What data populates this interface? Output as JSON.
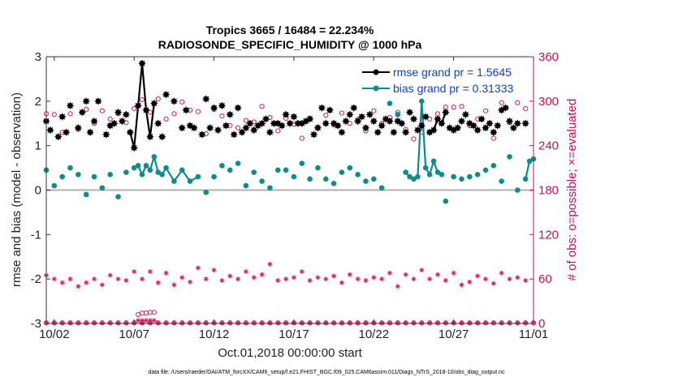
{
  "chart_data": {
    "type": "line",
    "title": "Tropics 3665 / 16484 = 22.234%",
    "subtitle": "RADIOSONDE_SPECIFIC_HUMIDITY @ 1000 hPa",
    "xlabel": "Oct.01,2018 00:00:00 start",
    "ylabel": "rmse and bias (model - observation)",
    "ylabel_right": "# of obs: o=possible; ×=evaluated",
    "xlim": [
      0.5,
      31
    ],
    "ylim": [
      -3,
      3
    ],
    "ylim_right": [
      0,
      360
    ],
    "x_ticks": [
      1,
      6,
      11,
      16,
      21,
      26,
      31
    ],
    "x_tick_labels": [
      "10/02",
      "10/07",
      "10/12",
      "10/17",
      "10/22",
      "10/27",
      "11/01"
    ],
    "y_ticks": [
      -3,
      -2,
      -1,
      0,
      1,
      2,
      3
    ],
    "y_tick_labels": [
      "-3",
      "-2",
      "-1",
      "0",
      "1",
      "2",
      "3"
    ],
    "y_ticks_right": [
      0,
      60,
      120,
      180,
      240,
      300,
      360
    ],
    "y_tick_labels_right": [
      "0",
      "60",
      "120",
      "180",
      "240",
      "300",
      "360"
    ],
    "colors": {
      "rmse": "#000000",
      "bias": "#0e8c8c",
      "counts": "#d81b5a",
      "zero_line": "#b0b0b0",
      "legend_text": "#0b3fd8"
    },
    "legend": [
      {
        "series": "rmse",
        "label": "rmse grand pr = 1.5645"
      },
      {
        "series": "bias",
        "label": "bias grand pr = 0.31333"
      }
    ],
    "rmse": {
      "x": [
        0.5,
        0.75,
        1.0,
        1.25,
        1.5,
        1.75,
        2.0,
        2.25,
        2.5,
        2.75,
        3.0,
        3.25,
        3.5,
        3.75,
        4.0,
        4.25,
        4.5,
        4.75,
        5.0,
        5.25,
        5.5,
        5.75,
        6.0,
        6.25,
        6.5,
        6.75,
        7.0,
        7.25,
        7.5,
        7.75,
        8.0,
        8.25,
        8.5,
        8.75,
        9.0,
        9.25,
        9.5,
        9.75,
        10.0,
        10.25,
        10.5,
        10.75,
        11.0,
        11.25,
        11.5,
        11.75,
        12.0,
        12.25,
        12.5,
        12.75,
        13.0,
        13.25,
        13.5,
        13.75,
        14.0,
        14.25,
        14.5,
        14.75,
        15.0,
        15.25,
        15.5,
        15.75,
        16.0,
        16.25,
        16.5,
        16.75,
        17.0,
        17.25,
        17.5,
        17.75,
        18.0,
        18.25,
        18.5,
        18.75,
        19.0,
        19.25,
        19.5,
        19.75,
        20.0,
        20.25,
        20.5,
        20.75,
        21.0,
        21.25,
        21.5,
        21.75,
        22.0,
        22.25,
        22.5,
        22.75,
        23.0,
        23.25,
        23.5,
        23.75,
        24.0,
        24.25,
        24.5,
        24.75,
        25.0,
        25.25,
        25.5,
        25.75,
        26.0,
        26.25,
        26.5,
        26.75,
        27.0,
        27.25,
        27.5,
        27.75,
        28.0,
        28.25,
        28.5,
        28.75,
        29.0,
        29.25,
        29.5,
        29.75,
        30.0,
        30.25,
        30.5,
        30.75
      ],
      "values": [
        1.55,
        1.35,
        null,
        1.2,
        1.65,
        1.3,
        1.9,
        null,
        1.4,
        1.75,
        2.0,
        1.3,
        1.55,
        2.0,
        null,
        1.25,
        1.45,
        1.5,
        1.75,
        1.55,
        1.7,
        1.3,
        0.95,
        1.9,
        2.85,
        1.8,
        1.2,
        1.95,
        1.5,
        1.2,
        2.15,
        null,
        2.0,
        null,
        1.4,
        1.8,
        1.45,
        1.4,
        null,
        1.25,
        2.05,
        1.4,
        1.85,
        1.35,
        1.9,
        1.45,
        1.7,
        1.25,
        1.85,
        1.3,
        1.4,
        1.5,
        1.35,
        1.45,
        1.5,
        1.6,
        1.3,
        1.5,
        1.5,
        1.45,
        1.7,
        1.5,
        1.65,
        1.5,
        1.5,
        1.55,
        1.6,
        1.25,
        1.4,
        1.85,
        1.5,
        1.8,
        1.5,
        1.45,
        1.3,
        1.55,
        1.7,
        1.85,
        1.55,
        1.65,
        1.4,
        1.7,
        1.55,
        1.3,
        1.45,
        1.6,
        1.55,
        1.3,
        1.55,
        1.5,
        1.3,
        1.75,
        1.6,
        1.35,
        1.45,
        1.65,
        1.3,
        1.35,
        1.6,
        1.5,
        1.75,
        1.4,
        1.35,
        1.4,
        1.55,
        1.7,
        1.5,
        1.45,
        1.35,
        1.6,
        1.4,
        1.5,
        1.3,
        1.45,
        1.8,
        1.85,
        1.55,
        1.4,
        1.5,
        2.15,
        1.5,
        null
      ],
      "connected": [
        [
          5.75,
          6.0,
          6.25,
          6.5,
          6.75,
          7.0,
          7.25
        ],
        [
          24.5,
          24.75,
          25.0,
          25.25,
          25.5
        ]
      ]
    },
    "bias": {
      "x": [
        0.5,
        1.0,
        1.5,
        2.0,
        2.5,
        3.0,
        3.5,
        4.0,
        4.5,
        5.0,
        5.5,
        6.0,
        6.25,
        6.5,
        6.75,
        7.0,
        7.25,
        7.5,
        7.75,
        8.0,
        8.5,
        9.0,
        9.5,
        10.0,
        10.5,
        11.0,
        11.5,
        12.0,
        12.5,
        13.0,
        13.5,
        14.0,
        14.5,
        15.0,
        15.5,
        16.0,
        16.5,
        17.0,
        17.5,
        18.0,
        18.5,
        19.0,
        19.5,
        20.0,
        20.5,
        21.0,
        21.5,
        22.0,
        22.5,
        23.0,
        23.25,
        23.5,
        23.75,
        24.0,
        24.25,
        24.5,
        24.75,
        25.0,
        25.25,
        25.5,
        26.0,
        26.5,
        27.0,
        27.5,
        28.0,
        28.5,
        29.0,
        29.5,
        30.0,
        30.5,
        30.75,
        31.0
      ],
      "values": [
        0.45,
        0.1,
        0.3,
        0.5,
        0.35,
        -0.1,
        0.3,
        0.05,
        0.35,
        -0.15,
        0.4,
        0.5,
        0.55,
        0.35,
        0.55,
        0.45,
        0.75,
        0.4,
        0.35,
        0.5,
        0.2,
        0.45,
        0.2,
        0.3,
        -0.05,
        0.3,
        0.55,
        0.45,
        0.6,
        0.1,
        0.4,
        0.2,
        0.05,
        0.45,
        0.45,
        0.3,
        0.6,
        0.25,
        0.5,
        0.25,
        0.15,
        0.4,
        0.5,
        0.35,
        0.2,
        0.25,
        0.05,
        1.95,
        1.7,
        0.4,
        0.3,
        0.25,
        0.3,
        2.0,
        0.5,
        0.35,
        0.65,
        0.4,
        0.35,
        -0.25,
        0.3,
        0.25,
        0.3,
        0.35,
        0.45,
        0.55,
        0.2,
        0.75,
        0.0,
        0.25,
        0.65,
        0.7
      ],
      "connected": [
        [
          6.25,
          6.5,
          6.75,
          7.0,
          7.25,
          7.5,
          7.75,
          8.0,
          8.5,
          9.0,
          9.5,
          10.0
        ],
        [
          23.0,
          23.25,
          23.5,
          23.75,
          24.0,
          24.25,
          24.5,
          24.75,
          25.0
        ],
        [
          30.5,
          30.75,
          31.0
        ]
      ]
    },
    "possible": {
      "x": [
        0.5,
        1.0,
        1.5,
        2.0,
        2.5,
        3.0,
        3.5,
        4.0,
        4.5,
        5.0,
        5.5,
        6.0,
        6.5,
        7.0,
        7.5,
        8.0,
        8.5,
        9.0,
        9.5,
        10.0,
        10.5,
        11.0,
        11.5,
        12.0,
        12.5,
        13.0,
        13.5,
        14.0,
        14.5,
        15.0,
        15.5,
        16.0,
        16.5,
        17.0,
        17.5,
        18.0,
        18.5,
        19.0,
        19.5,
        20.0,
        20.5,
        21.0,
        21.5,
        22.0,
        22.5,
        23.0,
        23.5,
        24.0,
        24.5,
        25.0,
        25.5,
        26.0,
        26.5,
        27.0,
        27.5,
        28.0,
        28.5,
        29.0,
        29.5,
        30.0,
        30.5
      ],
      "values": [
        283,
        282,
        258,
        283,
        262,
        289,
        270,
        287,
        276,
        283,
        271,
        290,
        302,
        285,
        303,
        276,
        283,
        299,
        288,
        286,
        256,
        289,
        280,
        267,
        264,
        274,
        272,
        293,
        278,
        260,
        277,
        269,
        250,
        277,
        265,
        281,
        268,
        284,
        270,
        275,
        260,
        287,
        270,
        278,
        285,
        262,
        249,
        258,
        276,
        283,
        292,
        292,
        293,
        267,
        276,
        287,
        250,
        298,
        271,
        298,
        290
      ]
    },
    "evaluated": {
      "x": [
        0.5,
        1.0,
        1.5,
        2.0,
        2.5,
        3.0,
        3.5,
        4.0,
        4.5,
        5.0,
        5.5,
        6.0,
        6.5,
        7.0,
        7.5,
        8.0,
        8.5,
        9.0,
        9.5,
        10.0,
        10.5,
        11.0,
        11.5,
        12.0,
        12.5,
        13.0,
        13.5,
        14.0,
        14.5,
        15.0,
        15.5,
        16.0,
        16.5,
        17.0,
        17.5,
        18.0,
        18.5,
        19.0,
        19.5,
        20.0,
        20.5,
        21.0,
        21.5,
        22.0,
        22.5,
        23.0,
        23.5,
        24.0,
        24.5,
        25.0,
        25.5,
        26.0,
        26.5,
        27.0,
        27.5,
        28.0,
        28.5,
        29.0,
        29.5,
        30.0,
        30.5
      ],
      "values": [
        65,
        60,
        55,
        60,
        50,
        55,
        60,
        52,
        65,
        60,
        58,
        70,
        60,
        70,
        55,
        68,
        52,
        62,
        56,
        75,
        60,
        72,
        58,
        64,
        60,
        70,
        62,
        66,
        80,
        58,
        60,
        62,
        70,
        58,
        62,
        60,
        64,
        55,
        66,
        60,
        58,
        62,
        60,
        68,
        50,
        66,
        60,
        72,
        60,
        66,
        58,
        68,
        52,
        56,
        64,
        60,
        54,
        68,
        60,
        62,
        58
      ]
    },
    "zero_possible_x": [
      0.5,
      1.0,
      1.5,
      2.0,
      2.5,
      3.0,
      3.5,
      4.0,
      4.5,
      5.0,
      5.5,
      6.0,
      6.5,
      7.0,
      7.5,
      8.0,
      8.5,
      9.0,
      9.5,
      10.0,
      10.5,
      11.0,
      11.5,
      12.0,
      12.5,
      13.0,
      13.5,
      14.0,
      14.5,
      15.0,
      15.5,
      16.0,
      16.5,
      17.0,
      17.5,
      18.0,
      18.5,
      19.0,
      19.5,
      20.0,
      20.5,
      21.0,
      21.5,
      22.0,
      22.5,
      23.0,
      23.5,
      24.0,
      24.5,
      25.0,
      25.5,
      26.0,
      26.5,
      27.0,
      27.5,
      28.0,
      28.5,
      29.0,
      29.5,
      30.0,
      30.5,
      31.0
    ],
    "low_possible": {
      "x": [
        6.25,
        6.5,
        6.75,
        7.0,
        7.25
      ],
      "values": [
        12,
        14,
        14,
        15,
        15
      ]
    },
    "low_evaluated": {
      "x": [
        6.25,
        6.5,
        6.75,
        7.0,
        7.25
      ],
      "values": [
        4,
        4,
        4,
        4,
        4
      ]
    },
    "footer": "data file: /Users/raeder/DAI/ATM_forcXX/CAM6_setup/f.e21.FHIST_BGC.f09_025.CAM6assim.011/Diags_NTrS_2018-10/obs_diag_output.nc"
  }
}
